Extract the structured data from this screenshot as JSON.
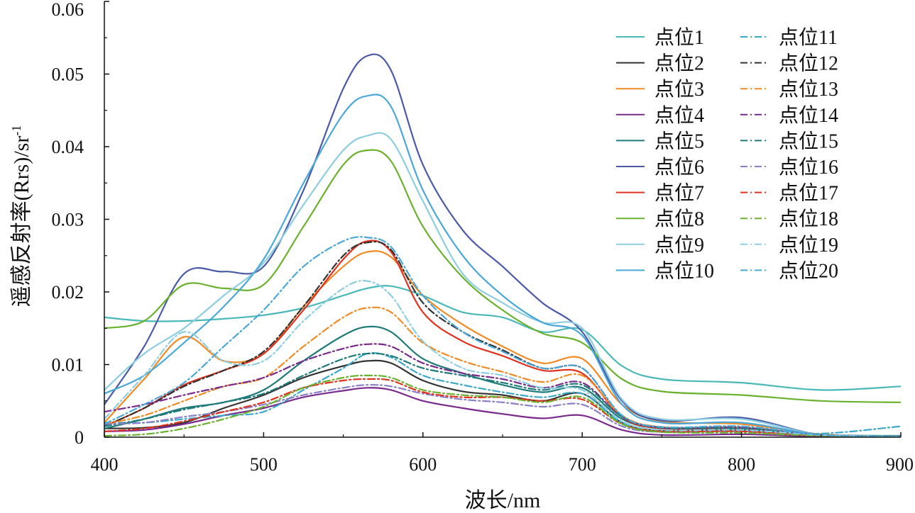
{
  "chart_data": {
    "type": "line",
    "title": "",
    "xlabel": "波长/nm",
    "ylabel_main": "遥感反射率(Rrs)/sr",
    "ylabel_sup": "-1",
    "xlim": [
      400,
      900
    ],
    "ylim": [
      0,
      0.06
    ],
    "xticks": [
      400,
      500,
      600,
      700,
      800,
      900
    ],
    "yticks": [
      0,
      0.01,
      0.02,
      0.03,
      0.04,
      0.05,
      0.06
    ],
    "ytick_labels": [
      "0",
      "0.01",
      "0.02",
      "0.03",
      "0.04",
      "0.05",
      "0.06"
    ],
    "grid": false,
    "legend_position": "top-right",
    "x": [
      400,
      425,
      450,
      475,
      500,
      525,
      550,
      565,
      580,
      600,
      625,
      650,
      675,
      700,
      725,
      750,
      800,
      850,
      900
    ],
    "series": [
      {
        "name": "点位1",
        "color": "#4bb8b8",
        "dash": "solid",
        "values": [
          0.0165,
          0.016,
          0.016,
          0.0163,
          0.0168,
          0.0178,
          0.0195,
          0.0205,
          0.0208,
          0.0195,
          0.0172,
          0.0165,
          0.0145,
          0.0148,
          0.0098,
          0.008,
          0.0075,
          0.0065,
          0.007
        ]
      },
      {
        "name": "点位2",
        "color": "#333333",
        "dash": "solid",
        "values": [
          0.0012,
          0.0013,
          0.002,
          0.004,
          0.0058,
          0.0082,
          0.0098,
          0.0105,
          0.0102,
          0.0078,
          0.0063,
          0.0058,
          0.005,
          0.006,
          0.002,
          0.0009,
          0.0009,
          0.0002,
          0.0001
        ]
      },
      {
        "name": "点位3",
        "color": "#f08a24",
        "dash": "solid",
        "values": [
          0.002,
          0.008,
          0.0138,
          0.0105,
          0.0115,
          0.018,
          0.0235,
          0.0255,
          0.0248,
          0.0195,
          0.0155,
          0.0125,
          0.0102,
          0.0108,
          0.0045,
          0.0022,
          0.0018,
          0.0004,
          0.0001
        ]
      },
      {
        "name": "点位4",
        "color": "#7a2a8c",
        "dash": "solid",
        "values": [
          0.0008,
          0.001,
          0.0018,
          0.003,
          0.004,
          0.0055,
          0.0064,
          0.0068,
          0.0065,
          0.005,
          0.004,
          0.0032,
          0.0026,
          0.003,
          0.001,
          0.0003,
          0.0004,
          0.0001,
          0.0001
        ]
      },
      {
        "name": "点位5",
        "color": "#1f7a7a",
        "dash": "solid",
        "values": [
          0.0012,
          0.0025,
          0.004,
          0.0048,
          0.0065,
          0.0105,
          0.014,
          0.0152,
          0.0145,
          0.0108,
          0.0088,
          0.0072,
          0.0062,
          0.0068,
          0.0025,
          0.0012,
          0.001,
          0.0003,
          0.0002
        ]
      },
      {
        "name": "点位6",
        "color": "#4a5aa8",
        "dash": "solid",
        "values": [
          0.0045,
          0.0125,
          0.0225,
          0.0228,
          0.0235,
          0.034,
          0.048,
          0.0525,
          0.0505,
          0.0375,
          0.0285,
          0.0235,
          0.0185,
          0.0145,
          0.005,
          0.0023,
          0.0027,
          0.0003,
          0.0001
        ]
      },
      {
        "name": "点位7",
        "color": "#e0321e",
        "dash": "solid",
        "values": [
          0.0015,
          0.004,
          0.0072,
          0.0092,
          0.0115,
          0.0175,
          0.0245,
          0.027,
          0.0255,
          0.0172,
          0.0132,
          0.0112,
          0.0092,
          0.0088,
          0.0028,
          0.0012,
          0.0012,
          0.0003,
          0.0001
        ]
      },
      {
        "name": "点位8",
        "color": "#6ab22e",
        "dash": "solid",
        "values": [
          0.015,
          0.016,
          0.021,
          0.0205,
          0.021,
          0.029,
          0.0375,
          0.0395,
          0.038,
          0.029,
          0.022,
          0.0175,
          0.0143,
          0.013,
          0.008,
          0.0063,
          0.0058,
          0.005,
          0.0048
        ]
      },
      {
        "name": "点位9",
        "color": "#8ccde0",
        "dash": "solid",
        "values": [
          0.0065,
          0.0115,
          0.015,
          0.0195,
          0.024,
          0.032,
          0.0395,
          0.0415,
          0.041,
          0.0325,
          0.0225,
          0.0185,
          0.0158,
          0.015,
          0.0052,
          0.0025,
          0.0025,
          0.0003,
          0.0001
        ]
      },
      {
        "name": "点位10",
        "color": "#4aa8d8",
        "dash": "solid",
        "values": [
          0.006,
          0.0085,
          0.013,
          0.018,
          0.0245,
          0.035,
          0.0445,
          0.047,
          0.0455,
          0.034,
          0.025,
          0.0195,
          0.0158,
          0.014,
          0.0045,
          0.002,
          0.002,
          0.0003,
          0.0001
        ]
      },
      {
        "name": "点位11",
        "color": "#3aa8c8",
        "dash": "dashdot",
        "values": [
          0.002,
          0.002,
          0.0025,
          0.003,
          0.0035,
          0.0065,
          0.0095,
          0.0115,
          0.011,
          0.0085,
          0.0072,
          0.0062,
          0.0055,
          0.006,
          0.002,
          0.001,
          0.0008,
          0.0005,
          0.0015
        ]
      },
      {
        "name": "点位12",
        "color": "#333333",
        "dash": "dashdot",
        "values": [
          0.0015,
          0.004,
          0.007,
          0.0092,
          0.0118,
          0.018,
          0.025,
          0.0268,
          0.0258,
          0.0185,
          0.0145,
          0.012,
          0.0095,
          0.0095,
          0.003,
          0.0014,
          0.0014,
          0.0003,
          0.0001
        ]
      },
      {
        "name": "点位13",
        "color": "#f08a24",
        "dash": "dashdot",
        "values": [
          0.0018,
          0.003,
          0.005,
          0.007,
          0.0082,
          0.0125,
          0.0165,
          0.0178,
          0.0172,
          0.013,
          0.0105,
          0.009,
          0.0076,
          0.0085,
          0.003,
          0.0014,
          0.0013,
          0.0003,
          0.0001
        ]
      },
      {
        "name": "点位14",
        "color": "#7a2a8c",
        "dash": "dashdot",
        "values": [
          0.0035,
          0.0045,
          0.0058,
          0.007,
          0.0082,
          0.0105,
          0.0122,
          0.0128,
          0.0125,
          0.0102,
          0.0088,
          0.008,
          0.0068,
          0.0075,
          0.0028,
          0.0013,
          0.0013,
          0.0003,
          0.0001
        ]
      },
      {
        "name": "点位15",
        "color": "#1f7a7a",
        "dash": "dashdot",
        "values": [
          0.0015,
          0.0025,
          0.0038,
          0.0048,
          0.006,
          0.0085,
          0.0108,
          0.0115,
          0.0112,
          0.0095,
          0.0085,
          0.0075,
          0.0065,
          0.0072,
          0.0028,
          0.0013,
          0.0012,
          0.0003,
          0.0001
        ]
      },
      {
        "name": "点位16",
        "color": "#8a80c8",
        "dash": "dashdot",
        "values": [
          0.0018,
          0.002,
          0.0028,
          0.0035,
          0.0045,
          0.0058,
          0.0068,
          0.0072,
          0.007,
          0.006,
          0.0052,
          0.0048,
          0.0042,
          0.0045,
          0.0015,
          0.0007,
          0.0008,
          0.0002,
          0.0001
        ]
      },
      {
        "name": "点位17",
        "color": "#e0321e",
        "dash": "dashdot",
        "values": [
          0.0008,
          0.0012,
          0.0022,
          0.0035,
          0.0048,
          0.0068,
          0.0078,
          0.008,
          0.0078,
          0.0062,
          0.0055,
          0.0055,
          0.005,
          0.0052,
          0.0018,
          0.0008,
          0.0008,
          0.0002,
          0.0001
        ]
      },
      {
        "name": "点位18",
        "color": "#6ab22e",
        "dash": "dashdot",
        "values": [
          0.0002,
          0.0004,
          0.0012,
          0.0025,
          0.0042,
          0.0068,
          0.0082,
          0.0085,
          0.0082,
          0.0065,
          0.0058,
          0.0055,
          0.0048,
          0.0055,
          0.0018,
          0.0007,
          0.0006,
          0.0002,
          0.0001
        ]
      },
      {
        "name": "点位19",
        "color": "#8ccde0",
        "dash": "dashdot",
        "values": [
          0.0025,
          0.0085,
          0.0145,
          0.0105,
          0.0105,
          0.016,
          0.0205,
          0.0215,
          0.0195,
          0.0132,
          0.0095,
          0.0085,
          0.0068,
          0.0065,
          0.0022,
          0.001,
          0.001,
          0.0003,
          0.0001
        ]
      },
      {
        "name": "点位20",
        "color": "#4aa8d8",
        "dash": "dashdot",
        "values": [
          0.0018,
          0.0045,
          0.0075,
          0.0125,
          0.0175,
          0.0235,
          0.027,
          0.0275,
          0.0262,
          0.0195,
          0.0145,
          0.0118,
          0.0095,
          0.0095,
          0.003,
          0.0014,
          0.0015,
          0.0003,
          0.0001
        ]
      }
    ]
  }
}
